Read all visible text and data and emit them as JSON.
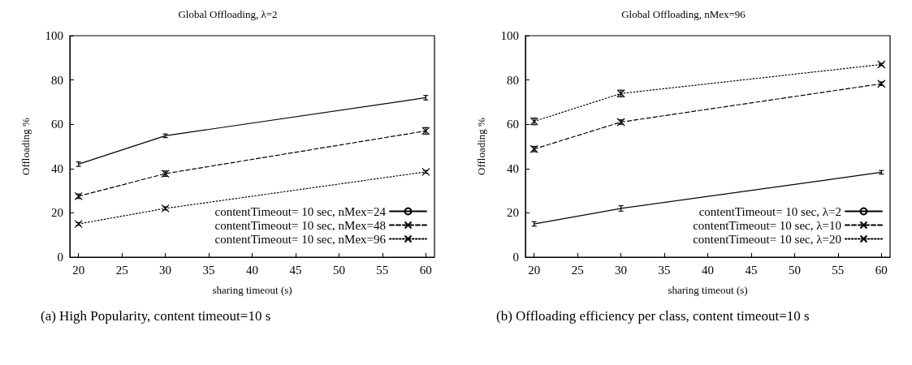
{
  "chart_data": [
    {
      "type": "line",
      "title": "Global Offloading, λ=2",
      "xlabel": "sharing timeout (s)",
      "ylabel": "Offloading %",
      "x": [
        20,
        30,
        60
      ],
      "xlim": [
        19,
        61
      ],
      "xticks": [
        20,
        25,
        30,
        35,
        40,
        45,
        50,
        55,
        60
      ],
      "ylim": [
        0,
        100
      ],
      "yticks": [
        0,
        20,
        40,
        60,
        80,
        100
      ],
      "legend": "bottom right",
      "annotations": [
        "(a) High Popularity, content timeout=10 s"
      ],
      "series": [
        {
          "name": "contentTimeout= 10 sec, nMex=24",
          "color": "#000000",
          "line_style": "solid",
          "marker": "none",
          "values": [
            42,
            54.8,
            72
          ],
          "errors": [
            1,
            0.8,
            1
          ]
        },
        {
          "name": "contentTimeout= 10 sec, nMex=48",
          "color": "#000000",
          "line_style": "dashed",
          "marker": "cross",
          "values": [
            27.5,
            37.7,
            57
          ],
          "errors": [
            1,
            1.2,
            1.5
          ]
        },
        {
          "name": "contentTimeout= 10 sec, nMex=96",
          "color": "#000000",
          "line_style": "dotted",
          "marker": "cross",
          "values": [
            15,
            22,
            38.5
          ],
          "errors": [
            0.6,
            0.7,
            0.6
          ]
        }
      ]
    },
    {
      "type": "line",
      "title": "Global Offloading, nMex=96",
      "xlabel": "sharing timeout (s)",
      "ylabel": "Offloading %",
      "x": [
        20,
        30,
        60
      ],
      "xlim": [
        19,
        61
      ],
      "xticks": [
        20,
        25,
        30,
        35,
        40,
        45,
        50,
        55,
        60
      ],
      "ylim": [
        0,
        100
      ],
      "yticks": [
        0,
        20,
        40,
        60,
        80,
        100
      ],
      "legend": "bottom right",
      "annotations": [
        "(b) Offloading efficiency per class, content timeout=10 s"
      ],
      "series": [
        {
          "name": "contentTimeout= 10 sec, λ=2",
          "color": "#000000",
          "line_style": "solid",
          "marker": "none",
          "values": [
            15,
            22,
            38.3
          ],
          "errors": [
            1,
            1.2,
            0.8
          ]
        },
        {
          "name": "contentTimeout= 10 sec, λ=10",
          "color": "#000000",
          "line_style": "dashed",
          "marker": "cross",
          "values": [
            48.8,
            61,
            78.3
          ],
          "errors": [
            1.2,
            1,
            0.8
          ]
        },
        {
          "name": "contentTimeout= 10 sec, λ=20",
          "color": "#000000",
          "line_style": "dotted",
          "marker": "cross",
          "values": [
            61.3,
            73.9,
            87
          ],
          "errors": [
            1.5,
            1.5,
            0.5
          ]
        }
      ]
    }
  ]
}
